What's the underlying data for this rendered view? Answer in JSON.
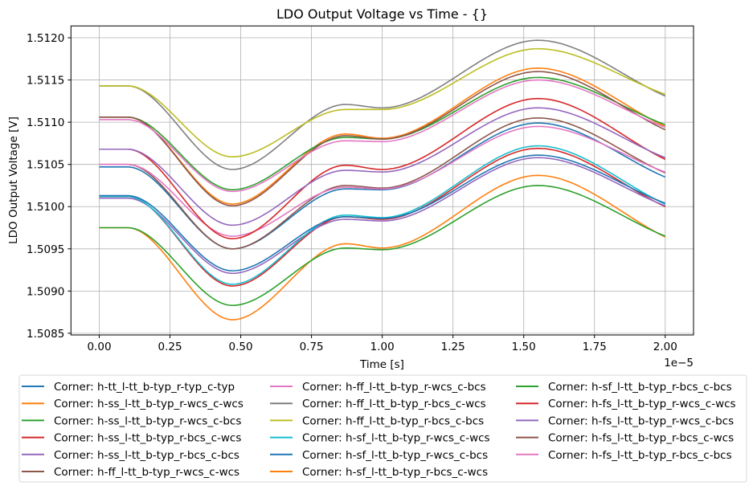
{
  "chart_data": {
    "type": "line",
    "title": "LDO Output Voltage vs Time - {}",
    "xlabel": "Time [s]",
    "ylabel": "LDO Output Voltage [V]",
    "x_offset_text": "1e−5",
    "xlim": [
      -0.1,
      2.1
    ],
    "ylim": [
      1.50848,
      1.51214
    ],
    "xticks": [
      "0.00",
      "0.25",
      "0.50",
      "0.75",
      "1.00",
      "1.25",
      "1.50",
      "1.75",
      "2.00"
    ],
    "yticks": [
      "1.5085",
      "1.5090",
      "1.5095",
      "1.5100",
      "1.5105",
      "1.5110",
      "1.5115",
      "1.5120"
    ],
    "grid": true,
    "legend_placement": "below",
    "x": [
      0,
      0.1,
      0.47,
      0.87,
      1.0,
      1.55,
      2.0
    ],
    "series": [
      {
        "name": "Corner: h-tt_l-tt_b-typ_r-typ_c-typ",
        "color": "#1f77b4",
        "values": [
          1.51047,
          1.51047,
          1.5095,
          1.51021,
          1.5102,
          1.51099,
          1.51035
        ]
      },
      {
        "name": "Corner: h-ss_l-tt_b-typ_r-wcs_c-wcs",
        "color": "#ff7f0e",
        "values": [
          1.50975,
          1.50975,
          1.50866,
          1.50956,
          1.50951,
          1.51037,
          1.50964
        ]
      },
      {
        "name": "Corner: h-ss_l-tt_b-typ_r-wcs_c-bcs",
        "color": "#2ca02c",
        "values": [
          1.50975,
          1.50975,
          1.50883,
          1.50951,
          1.50949,
          1.51025,
          1.50965
        ]
      },
      {
        "name": "Corner: h-ss_l-tt_b-typ_r-bcs_c-wcs",
        "color": "#d62728",
        "values": [
          1.51012,
          1.51012,
          1.50906,
          1.50988,
          1.50985,
          1.51069,
          1.51
        ]
      },
      {
        "name": "Corner: h-ss_l-tt_b-typ_r-bcs_c-bcs",
        "color": "#9467bd",
        "values": [
          1.5101,
          1.5101,
          1.50921,
          1.50985,
          1.50983,
          1.51058,
          1.51001
        ]
      },
      {
        "name": "Corner: h-ff_l-tt_b-typ_r-wcs_c-wcs",
        "color": "#8c564b",
        "values": [
          1.5105,
          1.5105,
          1.5095,
          1.51025,
          1.51022,
          1.51105,
          1.5104
        ]
      },
      {
        "name": "Corner: h-ff_l-tt_b-typ_r-wcs_c-bcs",
        "color": "#e377c2",
        "values": [
          1.5105,
          1.5105,
          1.50965,
          1.51023,
          1.51021,
          1.51095,
          1.51041
        ]
      },
      {
        "name": "Corner: h-ff_l-tt_b-typ_r-bcs_c-wcs",
        "color": "#7f7f7f",
        "values": [
          1.51143,
          1.51143,
          1.51044,
          1.51121,
          1.51117,
          1.51197,
          1.51131
        ]
      },
      {
        "name": "Corner: h-ff_l-tt_b-typ_r-bcs_c-bcs",
        "color": "#bcbd22",
        "values": [
          1.51143,
          1.51143,
          1.51059,
          1.51115,
          1.51115,
          1.51187,
          1.51133
        ]
      },
      {
        "name": "Corner: h-sf_l-tt_b-typ_r-wcs_c-wcs",
        "color": "#17becf",
        "values": [
          1.51012,
          1.51012,
          1.50908,
          1.5099,
          1.50987,
          1.51072,
          1.51003
        ]
      },
      {
        "name": "Corner: h-sf_l-tt_b-typ_r-wcs_c-bcs",
        "color": "#1f77b4",
        "values": [
          1.51013,
          1.51013,
          1.50924,
          1.50988,
          1.50986,
          1.51061,
          1.51004
        ]
      },
      {
        "name": "Corner: h-sf_l-tt_b-typ_r-bcs_c-wcs",
        "color": "#ff7f0e",
        "values": [
          1.51106,
          1.51106,
          1.51003,
          1.51086,
          1.51081,
          1.51164,
          1.51095
        ]
      },
      {
        "name": "Corner: h-sf_l-tt_b-typ_r-bcs_c-bcs",
        "color": "#2ca02c",
        "values": [
          1.51106,
          1.51106,
          1.5102,
          1.51082,
          1.5108,
          1.51153,
          1.51097
        ]
      },
      {
        "name": "Corner: h-fs_l-tt_b-typ_r-wcs_c-wcs",
        "color": "#d62728",
        "values": [
          1.51068,
          1.51068,
          1.50962,
          1.51049,
          1.51044,
          1.51128,
          1.51056
        ]
      },
      {
        "name": "Corner: h-fs_l-tt_b-typ_r-wcs_c-bcs",
        "color": "#9467bd",
        "values": [
          1.51068,
          1.51068,
          1.50978,
          1.51043,
          1.51041,
          1.51117,
          1.51058
        ]
      },
      {
        "name": "Corner: h-fs_l-tt_b-typ_r-bcs_c-wcs",
        "color": "#8c564b",
        "values": [
          1.51106,
          1.51106,
          1.51001,
          1.51084,
          1.5108,
          1.5116,
          1.51091
        ]
      },
      {
        "name": "Corner: h-fs_l-tt_b-typ_r-bcs_c-bcs",
        "color": "#e377c2",
        "values": [
          1.51103,
          1.51103,
          1.51018,
          1.51078,
          1.51077,
          1.5115,
          1.51094
        ]
      }
    ]
  }
}
